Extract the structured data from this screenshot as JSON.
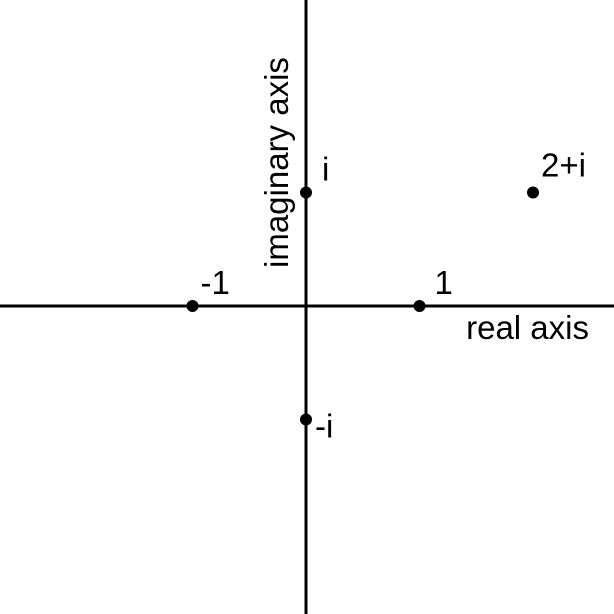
{
  "axes": {
    "real_label": "real axis",
    "imaginary_label": "imaginary axis"
  },
  "points": [
    {
      "label": "i",
      "re": 0,
      "im": 1
    },
    {
      "label": "2+i",
      "re": 2,
      "im": 1
    },
    {
      "label": "-1",
      "re": -1,
      "im": 0
    },
    {
      "label": "1",
      "re": 1,
      "im": 0
    },
    {
      "label": "-i",
      "re": 0,
      "im": -1
    }
  ],
  "colors": {
    "ink": "#000000",
    "background": "#ffffff"
  }
}
